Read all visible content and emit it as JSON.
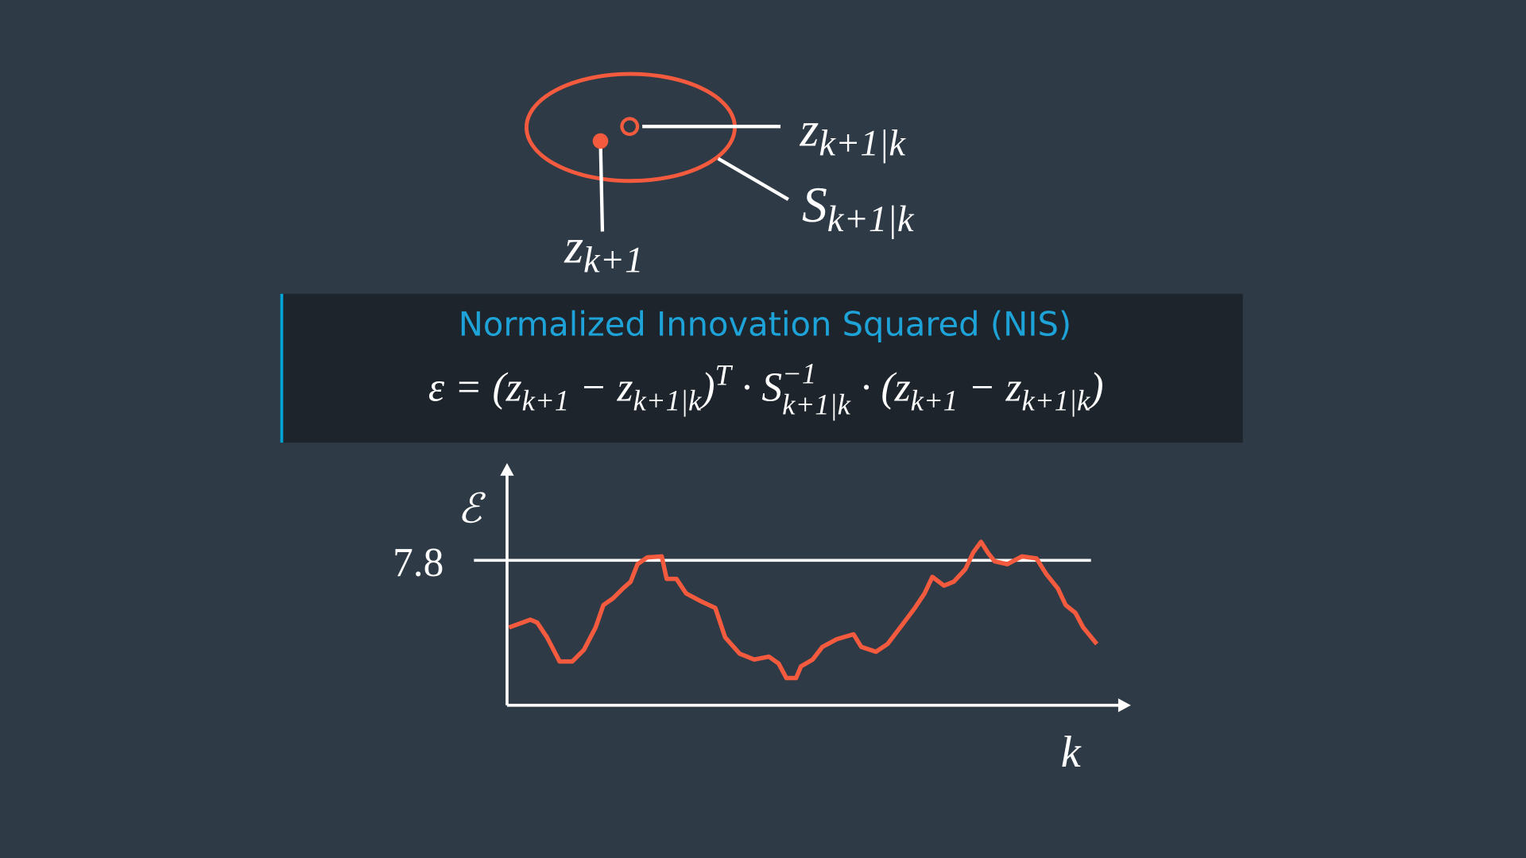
{
  "labels": {
    "z_pred": {
      "base": "z",
      "sub": "k+1|k"
    },
    "s_pred": {
      "base": "S",
      "sub": "k+1|k"
    },
    "z_meas": {
      "base": "z",
      "sub": "k+1"
    }
  },
  "box": {
    "title": "Normalized Innovation Squared (NIS)",
    "formula": [
      {
        "text": "ε = (z"
      },
      {
        "sub": "k+1"
      },
      {
        "text": " − z"
      },
      {
        "sub": "k+1|k"
      },
      {
        "text": ")"
      },
      {
        "sup": "T"
      },
      {
        "text": " · S"
      },
      {
        "sup": "−1",
        "sub": "k+1|k"
      },
      {
        "text": " · (z"
      },
      {
        "sub": "k+1"
      },
      {
        "text": " − z"
      },
      {
        "sub": "k+1|k"
      },
      {
        "text": ")"
      }
    ]
  },
  "plot": {
    "y_label": "ℰ",
    "threshold_label": "7.8",
    "x_label": "k"
  }
}
